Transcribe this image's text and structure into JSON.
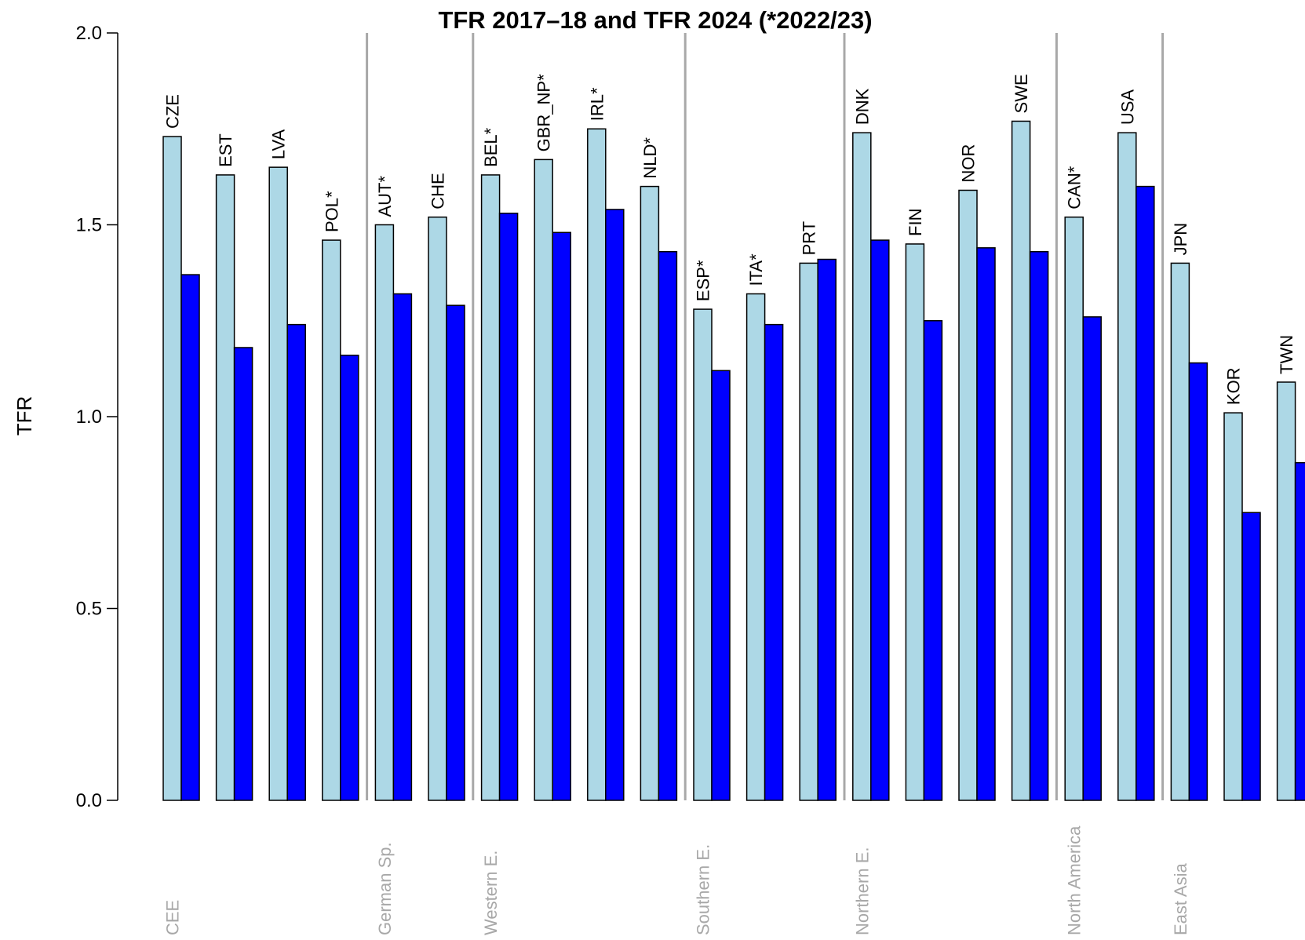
{
  "chart_data": {
    "type": "bar",
    "title": "TFR 2017–18 and TFR 2024 (*2022/23)",
    "xlabel": "",
    "ylabel": "TFR",
    "ylim": [
      0,
      2.0
    ],
    "yticks": [
      "0.0",
      "0.5",
      "1.0",
      "1.5",
      "2.0"
    ],
    "grid": false,
    "legend": "none",
    "colors": {
      "series1": "#add8e6",
      "series2": "#0000ff",
      "separator": "#a8a8a8",
      "group_label": "#a8a8a8"
    },
    "categories": [
      "CZE",
      "EST",
      "LVA",
      "POL*",
      "AUT*",
      "CHE",
      "BEL*",
      "GBR_NP*",
      "IRL*",
      "NLD*",
      "ESP*",
      "ITA*",
      "PRT",
      "DNK",
      "FIN",
      "NOR",
      "SWE",
      "CAN*",
      "USA",
      "JPN",
      "KOR",
      "TWN"
    ],
    "series": [
      {
        "values": [
          1.73,
          1.63,
          1.65,
          1.46,
          1.5,
          1.52,
          1.63,
          1.67,
          1.75,
          1.6,
          1.28,
          1.32,
          1.4,
          1.74,
          1.45,
          1.59,
          1.77,
          1.52,
          1.74,
          1.4,
          1.01,
          1.09
        ]
      },
      {
        "values": [
          1.37,
          1.18,
          1.24,
          1.16,
          1.32,
          1.29,
          1.53,
          1.48,
          1.54,
          1.43,
          1.12,
          1.24,
          1.41,
          1.46,
          1.25,
          1.44,
          1.43,
          1.26,
          1.6,
          1.14,
          0.75,
          0.88
        ]
      }
    ],
    "groups": [
      {
        "label": "CEE",
        "start": 0
      },
      {
        "label": "German Sp.",
        "start": 4
      },
      {
        "label": "Western E.",
        "start": 6
      },
      {
        "label": "Southern E.",
        "start": 10
      },
      {
        "label": "Northern E.",
        "start": 13
      },
      {
        "label": "North America",
        "start": 17
      },
      {
        "label": "East Asia",
        "start": 19
      }
    ]
  }
}
